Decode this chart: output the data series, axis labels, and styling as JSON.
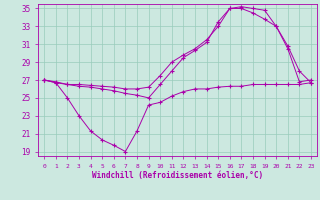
{
  "xlabel": "Windchill (Refroidissement éolien,°C)",
  "background_color": "#cce8e0",
  "grid_color": "#99ccbb",
  "line_color": "#aa00aa",
  "xlim": [
    -0.5,
    23.5
  ],
  "ylim": [
    18.5,
    35.5
  ],
  "yticks": [
    19,
    21,
    23,
    25,
    27,
    29,
    31,
    33,
    35
  ],
  "xticks": [
    0,
    1,
    2,
    3,
    4,
    5,
    6,
    7,
    8,
    9,
    10,
    11,
    12,
    13,
    14,
    15,
    16,
    17,
    18,
    19,
    20,
    21,
    22,
    23
  ],
  "line1_x": [
    0,
    1,
    2,
    3,
    4,
    5,
    6,
    7,
    8,
    9,
    10,
    11,
    12,
    13,
    14,
    15,
    16,
    17,
    18,
    19,
    20,
    21,
    22,
    23
  ],
  "line1_y": [
    27.0,
    26.7,
    25.0,
    23.0,
    21.3,
    20.3,
    19.7,
    19.0,
    21.3,
    24.2,
    24.5,
    25.2,
    25.7,
    26.0,
    26.0,
    26.2,
    26.3,
    26.3,
    26.5,
    26.5,
    26.5,
    26.5,
    26.5,
    26.7
  ],
  "line2_x": [
    0,
    1,
    2,
    3,
    4,
    5,
    6,
    7,
    8,
    9,
    10,
    11,
    12,
    13,
    14,
    15,
    16,
    17,
    18,
    19,
    20,
    21,
    22,
    23
  ],
  "line2_y": [
    27.0,
    26.7,
    26.5,
    26.5,
    26.4,
    26.3,
    26.2,
    26.0,
    26.0,
    26.2,
    27.5,
    29.0,
    29.8,
    30.5,
    31.5,
    33.0,
    35.0,
    35.0,
    34.5,
    33.8,
    33.0,
    30.8,
    28.0,
    26.7
  ],
  "line3_x": [
    0,
    1,
    2,
    3,
    4,
    5,
    6,
    7,
    8,
    9,
    10,
    11,
    12,
    13,
    14,
    15,
    16,
    17,
    18,
    19,
    20,
    21,
    22,
    23
  ],
  "line3_y": [
    27.0,
    26.8,
    26.5,
    26.3,
    26.2,
    26.0,
    25.8,
    25.5,
    25.3,
    25.0,
    26.5,
    28.0,
    29.5,
    30.3,
    31.2,
    33.5,
    35.0,
    35.2,
    35.0,
    34.8,
    33.0,
    30.5,
    26.8,
    27.0
  ]
}
